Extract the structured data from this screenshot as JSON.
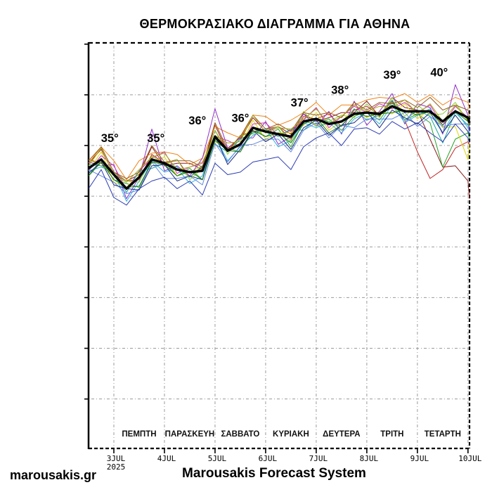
{
  "title": "ΘΕΡΜΟΚΡΑΣΙΑΚΟ ΔΙΑΓΡΑΜΜΑ ΓΙΑ ΑΘΗΝΑ",
  "footer": {
    "site": "marousakis.gr",
    "system": "Marousakis Forecast System"
  },
  "chart_data": {
    "type": "line",
    "title": "ΘΕΡΜΟΚΡΑΣΙΑΚΟ ΔΙΑΓΡΑΜΜΑ ΓΙΑ ΑΘΗΝΑ",
    "xlabel": "",
    "ylabel": "",
    "grid": "dotted",
    "legend": "none",
    "x_axis": {
      "tmin": 0,
      "tmax": 7.53,
      "tick_t": [
        0.5,
        1.5,
        2.5,
        3.5,
        4.5,
        5.5,
        6.5,
        7.5
      ],
      "tick_labels": [
        "3JUL",
        "4JUL",
        "5JUL",
        "6JUL",
        "7JUL",
        "8JUL",
        "9JUL",
        "10JUL"
      ],
      "year_label": "2025",
      "day_center_t": [
        1,
        2,
        3,
        4,
        5,
        6,
        7
      ],
      "day_names": [
        "ΠΕΜΠΤΗ",
        "ΠΑΡΑΣΚΕΥΗ",
        "ΣΑΒΒΑΤΟ",
        "ΚΥΡΙΑΚΗ",
        "ΔΕΥΤΕΡΑ",
        "ΤΡΙΤΗ",
        "ΤΕΤΑΡΤΗ"
      ]
    },
    "y_axis": {
      "min": 12.1,
      "max": 44.1,
      "grid_values": [
        16,
        20,
        24,
        28,
        32,
        36,
        40
      ],
      "left_tick_values": [
        16,
        20,
        24,
        28,
        32,
        36,
        40,
        44
      ],
      "labels_shown": false,
      "unit": "°C"
    },
    "annotations": [
      {
        "text": "35°",
        "t": 0.42,
        "v": 36.6
      },
      {
        "text": "35°",
        "t": 1.33,
        "v": 36.6
      },
      {
        "text": "36°",
        "t": 2.15,
        "v": 38.0
      },
      {
        "text": "36°",
        "t": 3.0,
        "v": 38.2
      },
      {
        "text": "37°",
        "t": 4.17,
        "v": 39.4
      },
      {
        "text": "38°",
        "t": 4.97,
        "v": 40.4
      },
      {
        "text": "39°",
        "t": 6.0,
        "v": 41.6
      },
      {
        "text": "40°",
        "t": 6.93,
        "v": 41.8
      }
    ],
    "t_values": [
      0,
      0.25,
      0.5,
      0.75,
      1,
      1.25,
      1.5,
      1.75,
      2,
      2.25,
      2.5,
      2.75,
      3,
      3.25,
      3.5,
      3.75,
      4,
      4.25,
      4.5,
      4.75,
      5,
      5.25,
      5.5,
      5.75,
      6,
      6.25,
      6.5,
      6.75,
      7,
      7.25,
      7.5,
      7.53
    ],
    "mean": {
      "name": "ensemble-mean",
      "color": "#000000",
      "values": [
        34.2,
        34.9,
        33.7,
        32.6,
        33.5,
        34.9,
        34.6,
        34.1,
        33.9,
        34.0,
        36.7,
        35.6,
        36.1,
        37.4,
        37.1,
        36.9,
        36.7,
        37.9,
        38.1,
        37.7,
        37.9,
        38.5,
        38.6,
        38.5,
        39.1,
        38.7,
        38.7,
        38.7,
        37.9,
        38.7,
        38.2,
        37.8
      ]
    },
    "members": [
      {
        "name": "member-01",
        "color": "#c22424",
        "values": [
          34.9,
          34.6,
          33.9,
          33.2,
          33.3,
          35.3,
          34.6,
          34.9,
          33.5,
          34.3,
          37.2,
          35.5,
          36.8,
          37.1,
          37.3,
          37.5,
          36.5,
          38.3,
          38.1,
          38.5,
          37.5,
          38.8,
          39.1,
          38.4,
          39.5,
          38.0,
          35.5,
          33.4,
          34.1,
          35.8,
          36.3,
          36.0
        ]
      },
      {
        "name": "member-02",
        "color": "#8b1a1a",
        "values": [
          34.6,
          35.7,
          33.7,
          33.2,
          33.7,
          35.9,
          34.4,
          34.6,
          34.6,
          34.1,
          37.6,
          35.5,
          36.5,
          38.2,
          37.1,
          37.5,
          36.9,
          38.5,
          37.9,
          38.2,
          38.6,
          38.6,
          39.5,
          38.3,
          39.8,
          39.0,
          38.8,
          36.5,
          34.3,
          34.4,
          33.2,
          31.8
        ]
      },
      {
        "name": "member-03",
        "color": "#28a428",
        "values": [
          33.6,
          34.9,
          33.3,
          33.0,
          32.7,
          34.8,
          34.7,
          33.6,
          34.2,
          33.3,
          36.5,
          35.8,
          35.5,
          37.4,
          36.7,
          37.3,
          35.9,
          37.9,
          37.7,
          38.1,
          37.2,
          38.3,
          38.7,
          38.0,
          39.4,
          38.0,
          38.5,
          37.8,
          34.3,
          36.5,
          37.0,
          36.5
        ]
      },
      {
        "name": "member-04",
        "color": "#ddd404",
        "values": [
          34.0,
          35.5,
          33.1,
          32.7,
          33.8,
          34.6,
          35.1,
          33.6,
          33.9,
          34.4,
          36.3,
          35.8,
          35.9,
          38.0,
          36.5,
          37.0,
          37.0,
          37.6,
          38.6,
          37.2,
          37.9,
          38.9,
          38.2,
          38.7,
          38.5,
          39.3,
          38.1,
          38.9,
          37.4,
          37.5,
          34.9,
          36.2
        ]
      },
      {
        "name": "member-05",
        "color": "#f08418",
        "values": [
          34.6,
          35.9,
          34.8,
          33.3,
          34.8,
          35.4,
          35.5,
          35.3,
          34.5,
          35.0,
          37.5,
          37.0,
          36.6,
          38.4,
          38.3,
          37.6,
          38.0,
          38.6,
          39.4,
          38.4,
          39.2,
          39.2,
          39.6,
          39.8,
          39.7,
          40.1,
          39.4,
          40.0,
          39.2,
          39.8,
          39.4,
          38.9
        ]
      },
      {
        "name": "member-06",
        "color": "#9232cc",
        "values": [
          34.7,
          34.4,
          34.5,
          31.8,
          33.5,
          37.3,
          34.0,
          34.4,
          33.6,
          35.0,
          38.9,
          35.8,
          36.6,
          36.6,
          37.9,
          36.1,
          36.7,
          38.5,
          37.5,
          38.7,
          36.9,
          39.5,
          37.6,
          38.7,
          40.1,
          37.7,
          39.3,
          39.0,
          36.9,
          40.8,
          38.4,
          37.2
        ]
      },
      {
        "name": "member-07",
        "color": "#cc38b4",
        "values": [
          34.0,
          35.2,
          34.4,
          32.5,
          34.0,
          35.0,
          35.5,
          33.8,
          34.3,
          34.6,
          36.7,
          36.4,
          35.9,
          37.7,
          37.8,
          36.8,
          37.2,
          38.0,
          39.0,
          37.4,
          38.3,
          39.1,
          38.6,
          39.3,
          38.9,
          39.4,
          38.6,
          39.2,
          37.6,
          39.1,
          38.2,
          37.7
        ]
      },
      {
        "name": "member-08",
        "color": "#18a89c",
        "values": [
          34.5,
          34.4,
          33.8,
          32.3,
          34.0,
          34.2,
          34.6,
          34.3,
          33.5,
          34.4,
          36.1,
          35.5,
          36.5,
          37.0,
          37.3,
          36.7,
          37.3,
          37.2,
          38.1,
          37.9,
          37.5,
          38.9,
          38.0,
          38.4,
          39.6,
          38.0,
          38.8,
          38.3,
          36.2,
          38.6,
          37.6,
          37.7
        ]
      },
      {
        "name": "member-09",
        "color": "#2cb4e4",
        "values": [
          34.0,
          34.3,
          33.9,
          31.6,
          33.2,
          34.8,
          33.9,
          34.2,
          33.0,
          33.6,
          36.7,
          34.8,
          35.9,
          36.8,
          37.3,
          35.9,
          36.4,
          37.8,
          37.4,
          37.8,
          37.0,
          38.1,
          38.6,
          37.7,
          39.2,
          37.8,
          38.4,
          38.9,
          37.0,
          38.8,
          37.4,
          37.0
        ]
      },
      {
        "name": "member-10",
        "color": "#6088e0",
        "values": [
          34.1,
          33.6,
          33.1,
          32.2,
          32.5,
          34.7,
          33.4,
          33.4,
          33.6,
          32.9,
          36.2,
          34.7,
          36.0,
          36.1,
          36.5,
          36.5,
          35.5,
          37.2,
          37.8,
          36.6,
          37.6,
          37.4,
          38.1,
          38.1,
          38.1,
          38.6,
          37.5,
          38.3,
          37.5,
          37.7,
          37.7,
          36.9
        ]
      },
      {
        "name": "member-11",
        "color": "#2c3cb4",
        "values": [
          32.6,
          34.1,
          31.9,
          31.3,
          32.6,
          33.2,
          33.5,
          32.6,
          33.2,
          32.1,
          34.6,
          33.7,
          33.9,
          34.7,
          34.9,
          35.1,
          34.1,
          35.9,
          36.6,
          37.0,
          36.0,
          37.3,
          37.4,
          36.9,
          37.9,
          37.3,
          37.8,
          37.0,
          36.3,
          37.7,
          36.6,
          36.2
        ]
      },
      {
        "name": "member-12",
        "color": "#1c2c80",
        "values": [
          33.8,
          34.7,
          32.9,
          32.6,
          32.5,
          34.4,
          34.5,
          33.2,
          33.6,
          33.3,
          36.8,
          34.5,
          35.7,
          37.2,
          36.3,
          36.9,
          35.7,
          37.4,
          38.0,
          36.8,
          37.6,
          37.8,
          38.7,
          37.4,
          38.8,
          38.2,
          37.7,
          38.6,
          37.0,
          38.4,
          37.1,
          36.8
        ]
      },
      {
        "name": "member-13",
        "color": "#8cd034",
        "values": [
          34.9,
          34.4,
          33.8,
          33.2,
          33.1,
          35.2,
          34.5,
          34.9,
          33.3,
          34.2,
          37.2,
          35.3,
          36.8,
          36.9,
          37.2,
          37.5,
          36.3,
          38.7,
          37.5,
          37.9,
          38.4,
          38.2,
          39.3,
          38.2,
          39.8,
          38.3,
          39.2,
          38.4,
          38.5,
          39.4,
          37.9,
          38.3
        ]
      },
      {
        "name": "member-14",
        "color": "#1e7a1e",
        "values": [
          33.6,
          34.7,
          33.3,
          32.7,
          32.8,
          34.7,
          34.5,
          33.6,
          34.0,
          33.3,
          36.4,
          35.6,
          35.5,
          37.2,
          36.7,
          37.0,
          36.2,
          37.7,
          38.2,
          37.0,
          37.6,
          38.6,
          38.3,
          38.5,
          38.6,
          38.8,
          38.4,
          38.7,
          37.6,
          38.7,
          37.9,
          37.5
        ]
      },
      {
        "name": "member-15",
        "color": "#96591e",
        "values": [
          34.8,
          35.9,
          33.9,
          33.4,
          33.9,
          36.0,
          34.7,
          34.8,
          34.8,
          34.3,
          37.8,
          35.7,
          36.7,
          38.4,
          37.3,
          37.7,
          37.1,
          38.6,
          38.4,
          38.6,
          38.2,
          39.4,
          38.8,
          39.4,
          39.3,
          39.6,
          39.0,
          39.8,
          38.8,
          39.2,
          38.8,
          38.3
        ]
      },
      {
        "name": "member-16",
        "color": "#aaa810",
        "values": [
          34.4,
          35.8,
          33.6,
          33.1,
          34.1,
          35.1,
          35.4,
          34.1,
          34.3,
          34.7,
          36.8,
          36.2,
          36.3,
          38.4,
          37.0,
          37.4,
          37.3,
          38.1,
          38.9,
          37.7,
          38.3,
          39.2,
          38.7,
          39.1,
          39.0,
          39.6,
          38.5,
          39.3,
          37.9,
          39.2,
          38.0,
          37.6
        ]
      }
    ],
    "style": {
      "grid_color": "#9a9a9a",
      "border_color": "#000000",
      "mean_width": 3.4,
      "member_width": 1,
      "annotation_color": "#000000"
    }
  }
}
